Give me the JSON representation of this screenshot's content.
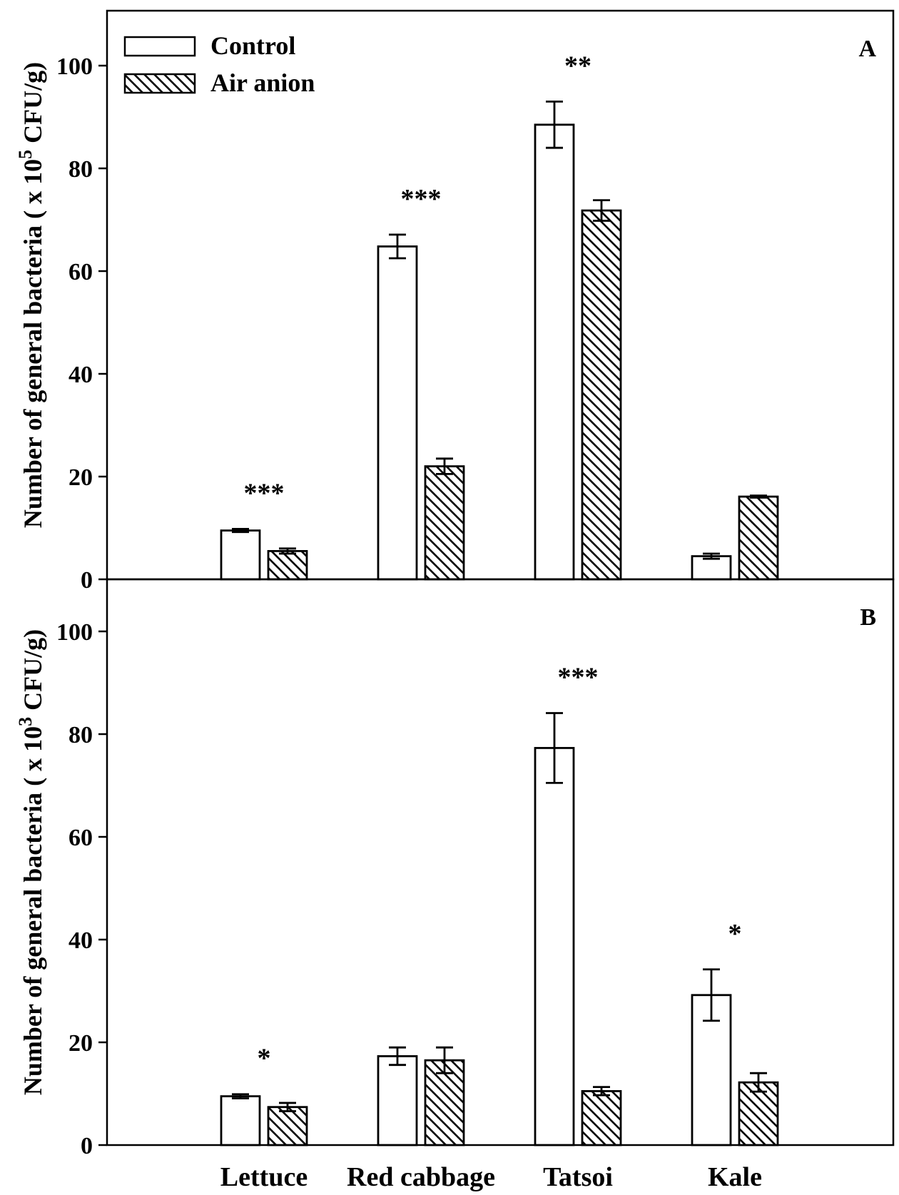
{
  "chart_data": [
    {
      "type": "bar",
      "panel_label": "A",
      "ylabel": "Number of general bacteria ( x 10",
      "ylabel_exponent": "5",
      "ylabel_unit": " CFU/g)",
      "ylim": [
        0,
        110
      ],
      "yticks": [
        "0",
        "20",
        "40",
        "60",
        "80",
        "100"
      ],
      "categories": [
        "Lettuce",
        "Red cabbage",
        "Tatsoi",
        "Kale"
      ],
      "series": [
        {
          "name": "Control",
          "fill": "open",
          "values": [
            9.5,
            64.8,
            88.5,
            4.5
          ],
          "errors": [
            0.3,
            2.3,
            4.5,
            0.5
          ]
        },
        {
          "name": "Air anion",
          "fill": "hatched",
          "values": [
            5.5,
            22.0,
            71.8,
            16.1
          ],
          "errors": [
            0.5,
            1.5,
            2.0,
            0.2
          ]
        }
      ],
      "significance": [
        "***",
        "***",
        "**",
        ""
      ],
      "legend": {
        "position": "top-left",
        "entries": [
          "Control",
          "Air anion"
        ]
      }
    },
    {
      "type": "bar",
      "panel_label": "B",
      "ylabel": "Number of general bacteria ( x 10",
      "ylabel_exponent": "3",
      "ylabel_unit": " CFU/g)",
      "ylim": [
        0,
        110
      ],
      "yticks": [
        "0",
        "20",
        "40",
        "60",
        "80",
        "100"
      ],
      "xticklabels": [
        "Lettuce",
        "Red cabbage",
        "Tatsoi",
        "Kale"
      ],
      "categories": [
        "Lettuce",
        "Red cabbage",
        "Tatsoi",
        "Kale"
      ],
      "series": [
        {
          "name": "Control",
          "fill": "open",
          "values": [
            9.5,
            17.3,
            77.3,
            29.2
          ],
          "errors": [
            0.4,
            1.7,
            6.8,
            5.0
          ]
        },
        {
          "name": "Air anion",
          "fill": "hatched",
          "values": [
            7.4,
            16.5,
            10.5,
            12.2
          ],
          "errors": [
            0.8,
            2.5,
            0.8,
            1.8
          ]
        }
      ],
      "significance": [
        "*",
        "",
        "***",
        "*"
      ]
    }
  ]
}
